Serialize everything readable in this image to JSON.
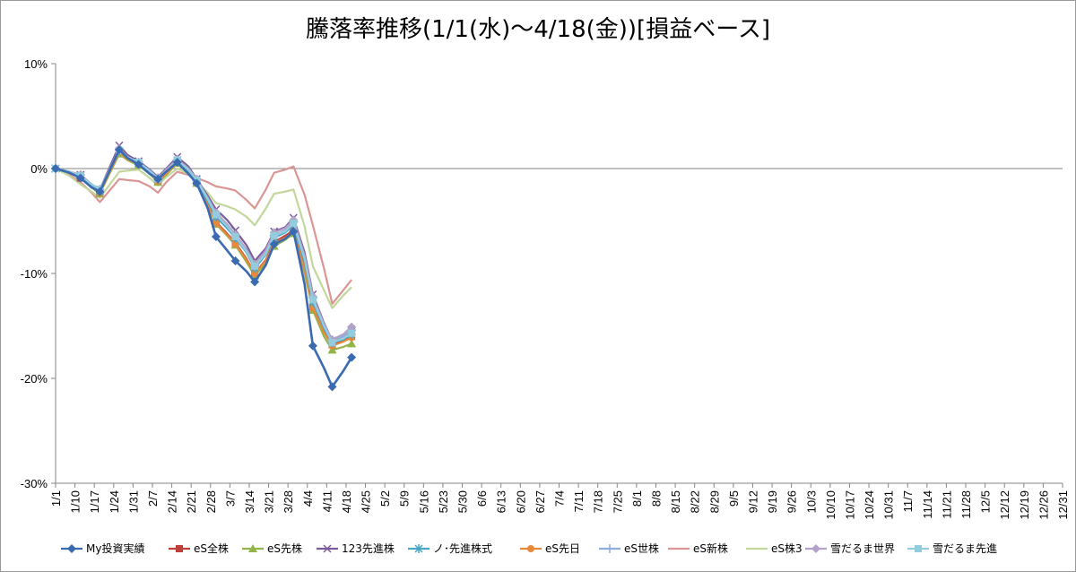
{
  "chart_data": {
    "type": "line",
    "title": "騰落率推移(1/1(水)～4/18(金))[損益ベース]",
    "xlabel": "",
    "ylabel": "",
    "ylim": [
      -30,
      10
    ],
    "yticks": [
      10,
      0,
      -10,
      -20,
      -30
    ],
    "ytick_labels": [
      "10%",
      "0%",
      "-10%",
      "-20%",
      "-30%"
    ],
    "grid": "horizontal line at 0% only",
    "legend_position": "bottom",
    "categories": [
      "1/1",
      "1/10",
      "1/17",
      "1/24",
      "1/31",
      "2/7",
      "2/14",
      "2/21",
      "2/28",
      "3/7",
      "3/14",
      "3/21",
      "3/28",
      "4/4",
      "4/11",
      "4/18",
      "4/25",
      "5/2",
      "5/9",
      "5/16",
      "5/23",
      "5/30",
      "6/6",
      "6/13",
      "6/20",
      "6/27",
      "7/4",
      "7/11",
      "7/18",
      "7/25",
      "8/1",
      "8/8",
      "8/15",
      "8/22",
      "8/29",
      "9/5",
      "9/12",
      "9/19",
      "9/26",
      "10/3",
      "10/10",
      "10/17",
      "10/24",
      "10/31",
      "11/7",
      "11/14",
      "11/21",
      "11/28",
      "12/5",
      "12/12",
      "12/19",
      "12/26",
      "12/31"
    ],
    "x": [
      "1/1",
      "1/6",
      "1/10",
      "1/14",
      "1/17",
      "1/24",
      "1/27",
      "1/31",
      "2/4",
      "2/7",
      "2/10",
      "2/14",
      "2/18",
      "2/21",
      "2/25",
      "2/28",
      "3/4",
      "3/7",
      "3/11",
      "3/14",
      "3/18",
      "3/21",
      "3/25",
      "3/28",
      "4/1",
      "4/4",
      "4/8",
      "4/11",
      "4/15",
      "4/18"
    ],
    "series": [
      {
        "name": "My投資実績",
        "color": "#3a6ab0",
        "marker": "diamond",
        "values": [
          0.0,
          -0.4,
          -0.9,
          -1.8,
          -2.2,
          1.8,
          1.0,
          0.4,
          -0.5,
          -1.0,
          -0.3,
          0.6,
          -0.5,
          -1.4,
          -3.8,
          -6.5,
          -7.8,
          -8.8,
          -9.8,
          -10.8,
          -9.2,
          -7.2,
          -6.7,
          -6.0,
          -11.0,
          -16.9,
          -19.0,
          -20.8,
          -19.3,
          -18.0
        ]
      },
      {
        "name": "eS全株",
        "color": "#bf3f3c",
        "marker": "square",
        "values": [
          0.0,
          -0.4,
          -0.9,
          -1.7,
          -2.3,
          1.5,
          0.9,
          0.4,
          -0.4,
          -1.2,
          -0.4,
          0.6,
          -0.4,
          -1.3,
          -3.4,
          -5.1,
          -6.2,
          -7.1,
          -8.6,
          -10.0,
          -8.7,
          -7.0,
          -6.4,
          -5.9,
          -9.5,
          -13.2,
          -15.5,
          -16.8,
          -16.4,
          -16.0
        ]
      },
      {
        "name": "eS先株",
        "color": "#94b44a",
        "marker": "triangle",
        "values": [
          0.0,
          -0.3,
          -0.7,
          -1.8,
          -2.4,
          1.4,
          0.8,
          0.3,
          -0.5,
          -1.3,
          -0.6,
          0.5,
          -0.5,
          -1.4,
          -3.6,
          -5.3,
          -6.4,
          -7.3,
          -8.9,
          -10.2,
          -9.0,
          -7.4,
          -6.8,
          -6.2,
          -9.9,
          -13.5,
          -16.0,
          -17.3,
          -17.0,
          -16.7
        ]
      },
      {
        "name": "123先進株",
        "color": "#7a5b9c",
        "marker": "x",
        "values": [
          0.0,
          -0.3,
          -0.6,
          -1.5,
          -2.0,
          2.2,
          1.3,
          0.7,
          -0.1,
          -0.8,
          0.0,
          1.1,
          0.2,
          -1.0,
          -2.6,
          -3.9,
          -4.9,
          -5.9,
          -7.3,
          -8.8,
          -7.6,
          -6.0,
          -5.6,
          -4.7,
          -8.0,
          -12.0,
          -14.7,
          -16.4,
          -16.0,
          -15.5
        ]
      },
      {
        "name": "ノ･先進株式",
        "color": "#4aa6c6",
        "marker": "asterisk",
        "values": [
          0.0,
          -0.3,
          -0.7,
          -1.6,
          -2.1,
          1.7,
          1.0,
          0.5,
          -0.3,
          -1.0,
          -0.3,
          0.8,
          -0.2,
          -1.2,
          -3.1,
          -4.6,
          -5.7,
          -6.6,
          -8.0,
          -9.5,
          -8.2,
          -6.6,
          -6.1,
          -5.4,
          -8.9,
          -12.7,
          -15.2,
          -16.6,
          -16.3,
          -15.8
        ]
      },
      {
        "name": "eS先日",
        "color": "#e7893b",
        "marker": "circle",
        "values": [
          0.0,
          -0.4,
          -0.8,
          -1.8,
          -2.3,
          1.6,
          0.9,
          0.4,
          -0.4,
          -1.2,
          -0.5,
          0.6,
          -0.4,
          -1.3,
          -3.5,
          -5.2,
          -6.3,
          -7.2,
          -8.7,
          -10.0,
          -8.8,
          -7.1,
          -6.6,
          -6.0,
          -9.6,
          -13.3,
          -15.6,
          -16.9,
          -16.5,
          -16.1
        ]
      },
      {
        "name": "eS世株",
        "color": "#8faedb",
        "marker": "plus",
        "values": [
          0.0,
          -0.3,
          -0.6,
          -1.5,
          -2.0,
          1.8,
          1.1,
          0.6,
          -0.2,
          -0.9,
          -0.2,
          0.8,
          -0.1,
          -1.1,
          -2.9,
          -4.4,
          -5.5,
          -6.4,
          -7.9,
          -9.3,
          -8.0,
          -6.4,
          -5.9,
          -5.1,
          -8.5,
          -12.3,
          -14.9,
          -16.4,
          -16.0,
          -15.4
        ]
      },
      {
        "name": "eS新株",
        "color": "#d99694",
        "marker": "none",
        "values": [
          0.0,
          -0.6,
          -1.3,
          -2.3,
          -3.2,
          -1.0,
          -1.1,
          -1.2,
          -1.7,
          -2.3,
          -1.3,
          -0.3,
          -0.6,
          -0.9,
          -1.3,
          -1.7,
          -1.9,
          -2.1,
          -3.0,
          -3.8,
          -2.0,
          -0.4,
          -0.1,
          0.2,
          -2.5,
          -5.4,
          -9.5,
          -12.9,
          -11.6,
          -10.6
        ]
      },
      {
        "name": "eS株3",
        "color": "#c3d69b",
        "marker": "none",
        "values": [
          0.0,
          -0.7,
          -1.5,
          -2.2,
          -2.8,
          -0.3,
          -0.2,
          -0.1,
          -0.9,
          -1.6,
          -0.8,
          0.0,
          -0.5,
          -1.3,
          -2.3,
          -3.3,
          -3.6,
          -3.9,
          -4.6,
          -5.4,
          -3.8,
          -2.4,
          -2.2,
          -2.0,
          -5.5,
          -9.3,
          -11.6,
          -13.3,
          -12.1,
          -11.3
        ]
      },
      {
        "name": "雪だるま世界",
        "color": "#b3a2c7",
        "marker": "diamond",
        "values": [
          0.0,
          -0.3,
          -0.6,
          -1.5,
          -2.0,
          1.9,
          1.1,
          0.6,
          -0.2,
          -0.9,
          -0.1,
          0.9,
          0.0,
          -1.0,
          -2.8,
          -4.2,
          -5.3,
          -6.3,
          -7.7,
          -9.1,
          -7.8,
          -6.1,
          -5.7,
          -4.9,
          -8.3,
          -12.2,
          -14.8,
          -16.3,
          -15.8,
          -15.1
        ]
      },
      {
        "name": "雪だるま先進",
        "color": "#93cddd",
        "marker": "square",
        "values": [
          0.0,
          -0.3,
          -0.7,
          -1.5,
          -2.0,
          1.7,
          1.1,
          0.6,
          -0.2,
          -1.0,
          -0.3,
          0.8,
          -0.1,
          -1.1,
          -2.9,
          -4.4,
          -5.5,
          -6.5,
          -7.9,
          -9.3,
          -8.1,
          -6.4,
          -6.0,
          -5.2,
          -8.6,
          -12.5,
          -15.0,
          -16.6,
          -16.2,
          -15.7
        ]
      }
    ]
  }
}
